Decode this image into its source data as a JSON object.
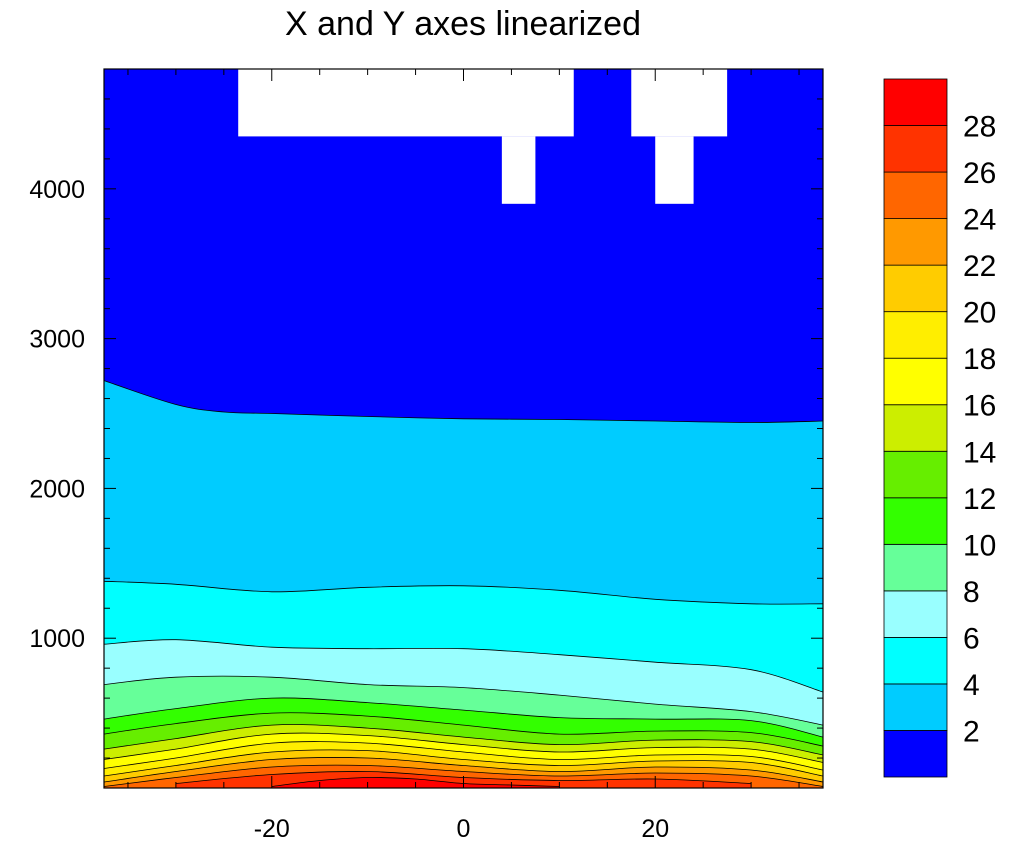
{
  "chart_data": {
    "type": "contour",
    "title": "X and Y axes linearized",
    "xlabel": "",
    "ylabel": "",
    "xlim": [
      -37.5,
      37.5
    ],
    "ylim": [
      0,
      4800
    ],
    "x_ticks": [
      -20,
      0,
      20
    ],
    "y_ticks": [
      1000,
      2000,
      3000,
      4000
    ],
    "colorbar": {
      "levels": [
        2,
        4,
        6,
        8,
        10,
        12,
        14,
        16,
        18,
        20,
        22,
        24,
        26,
        28
      ],
      "tick_labels": [
        "2",
        "4",
        "6",
        "8",
        "10",
        "12",
        "14",
        "16",
        "18",
        "20",
        "22",
        "24",
        "26",
        "28"
      ],
      "colors": [
        "#0000ff",
        "#00ccff",
        "#00ffff",
        "#99ffff",
        "#66ff99",
        "#33ff00",
        "#66ee00",
        "#ccee00",
        "#ffff00",
        "#ffee00",
        "#ffcc00",
        "#ff9900",
        "#ff6600",
        "#ff3300",
        "#ff0000"
      ]
    },
    "missing_value_regions": [
      {
        "x": [
          -23.5,
          11.5
        ],
        "y": [
          4350,
          4800
        ]
      },
      {
        "x": [
          4,
          7.5
        ],
        "y": [
          3900,
          4350
        ]
      },
      {
        "x": [
          17.5,
          27.5
        ],
        "y": [
          4350,
          4800
        ]
      },
      {
        "x": [
          20,
          24
        ],
        "y": [
          3900,
          4350
        ]
      }
    ],
    "contours": [
      {
        "level": 2,
        "x": [
          -37.5,
          -30,
          -25,
          -20,
          -10,
          0,
          10,
          20,
          30,
          37.5
        ],
        "y": [
          2720,
          2560,
          2510,
          2500,
          2480,
          2465,
          2460,
          2450,
          2440,
          2450
        ]
      },
      {
        "level": 4,
        "x": [
          -37.5,
          -30,
          -20,
          -10,
          0,
          10,
          20,
          30,
          37.5
        ],
        "y": [
          1380,
          1360,
          1310,
          1340,
          1350,
          1320,
          1260,
          1230,
          1230
        ]
      },
      {
        "level": 6,
        "x": [
          -37.5,
          -30,
          -20,
          -10,
          0,
          10,
          20,
          30,
          37.5
        ],
        "y": [
          960,
          990,
          940,
          930,
          930,
          890,
          840,
          790,
          640
        ]
      },
      {
        "level": 8,
        "x": [
          -37.5,
          -30,
          -20,
          -10,
          0,
          10,
          20,
          30,
          37.5
        ],
        "y": [
          690,
          740,
          740,
          690,
          670,
          620,
          560,
          510,
          420
        ]
      },
      {
        "level": 10,
        "x": [
          -37.5,
          -30,
          -20,
          -10,
          0,
          10,
          20,
          30,
          37.5
        ],
        "y": [
          460,
          530,
          600,
          570,
          520,
          470,
          460,
          450,
          340
        ]
      },
      {
        "level": 12,
        "x": [
          -37.5,
          -30,
          -20,
          -10,
          0,
          10,
          20,
          30,
          37.5
        ],
        "y": [
          360,
          430,
          500,
          480,
          420,
          360,
          380,
          370,
          280
        ]
      },
      {
        "level": 14,
        "x": [
          -37.5,
          -30,
          -20,
          -10,
          0,
          10,
          20,
          30,
          37.5
        ],
        "y": [
          260,
          330,
          420,
          400,
          340,
          290,
          320,
          310,
          220
        ]
      },
      {
        "level": 16,
        "x": [
          -37.5,
          -30,
          -20,
          -10,
          0,
          10,
          20,
          30,
          37.5
        ],
        "y": [
          190,
          260,
          360,
          350,
          290,
          240,
          270,
          260,
          170
        ]
      },
      {
        "level": 18,
        "x": [
          -37.5,
          -30,
          -20,
          -10,
          0,
          10,
          20,
          30,
          37.5
        ],
        "y": [
          130,
          200,
          300,
          300,
          240,
          190,
          220,
          210,
          120
        ]
      },
      {
        "level": 20,
        "x": [
          -37.5,
          -30,
          -20,
          -10,
          0,
          10,
          20,
          30,
          37.5
        ],
        "y": [
          80,
          150,
          240,
          250,
          190,
          150,
          180,
          170,
          80
        ]
      },
      {
        "level": 22,
        "x": [
          -37.5,
          -30,
          -20,
          -10,
          0,
          10,
          20,
          30,
          37.5
        ],
        "y": [
          40,
          110,
          190,
          200,
          150,
          110,
          140,
          120,
          40
        ]
      },
      {
        "level": 24,
        "x": [
          -37.5,
          -30,
          -20,
          -10,
          0,
          10,
          20,
          30,
          37.5
        ],
        "y": [
          10,
          70,
          140,
          150,
          110,
          80,
          100,
          80,
          10
        ]
      },
      {
        "level": 26,
        "x": [
          -30,
          -20,
          -10,
          0,
          10,
          20,
          30
        ],
        "y": [
          30,
          90,
          110,
          70,
          50,
          60,
          30
        ]
      },
      {
        "level": 28,
        "x": [
          -20,
          -15,
          -10,
          -5,
          0,
          5,
          10
        ],
        "y": [
          10,
          50,
          70,
          60,
          30,
          20,
          10
        ]
      }
    ]
  }
}
